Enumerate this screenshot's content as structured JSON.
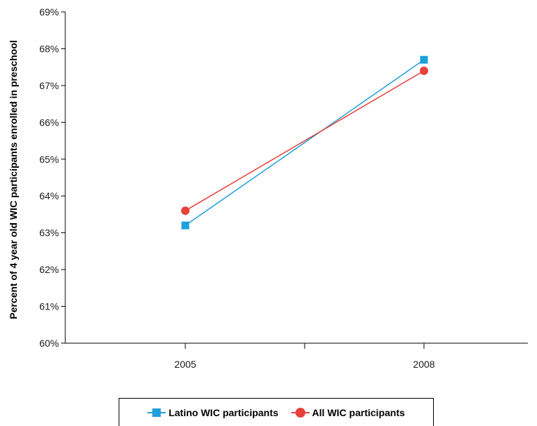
{
  "chart_data": {
    "type": "line",
    "title": "",
    "xlabel": "",
    "ylabel": "Percent of 4 year old WIC participants enrolled in preschool",
    "x": [
      "2005",
      "2008"
    ],
    "ylim": [
      60,
      69
    ],
    "yticks": [
      "60%",
      "61%",
      "62%",
      "63%",
      "64%",
      "65%",
      "66%",
      "67%",
      "68%",
      "69%"
    ],
    "grid": false,
    "legend_position": "bottom",
    "series": [
      {
        "name": "Latino WIC participants",
        "values": [
          63.2,
          67.7
        ],
        "color": "#1ea0dc",
        "marker": "square"
      },
      {
        "name": "All WIC participants",
        "values": [
          63.6,
          67.4
        ],
        "color": "#e8403a",
        "marker": "circle"
      }
    ]
  }
}
